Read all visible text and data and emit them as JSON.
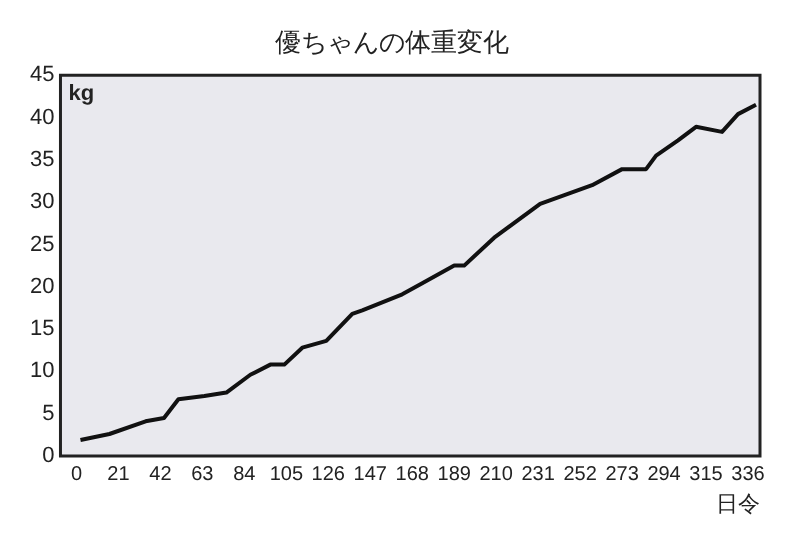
{
  "chart_data": {
    "type": "line",
    "title": "優ちゃんの体重変化",
    "xlabel": "日令",
    "ylabel": "kg",
    "x": [
      2,
      16.5,
      34.6,
      43.8,
      51,
      64,
      75,
      87,
      97,
      104,
      113,
      125,
      138,
      143,
      163,
      173,
      189,
      194,
      209,
      232,
      258,
      273,
      285,
      290,
      301,
      310,
      323,
      331,
      340
    ],
    "series": [
      {
        "color": "#111111",
        "values": [
          1.9,
          2.6,
          4.1,
          4.5,
          6.7,
          7.1,
          7.5,
          9.6,
          10.8,
          10.8,
          12.8,
          13.6,
          16.8,
          17.2,
          19.1,
          20.4,
          22.5,
          22.5,
          25.8,
          29.8,
          32.0,
          33.9,
          33.9,
          35.5,
          37.3,
          38.9,
          38.3,
          40.4,
          41.5
        ]
      }
    ],
    "xlim": [
      -8,
      342
    ],
    "xticks": [
      0,
      21,
      42,
      63,
      84,
      105,
      126,
      147,
      168,
      189,
      210,
      231,
      252,
      273,
      294,
      315,
      336
    ],
    "ylim": [
      0,
      45
    ],
    "yticks": [
      0,
      5,
      10,
      15,
      20,
      25,
      30,
      35,
      40,
      45
    ],
    "legend": false,
    "marker": "none",
    "line_style": "solid"
  }
}
